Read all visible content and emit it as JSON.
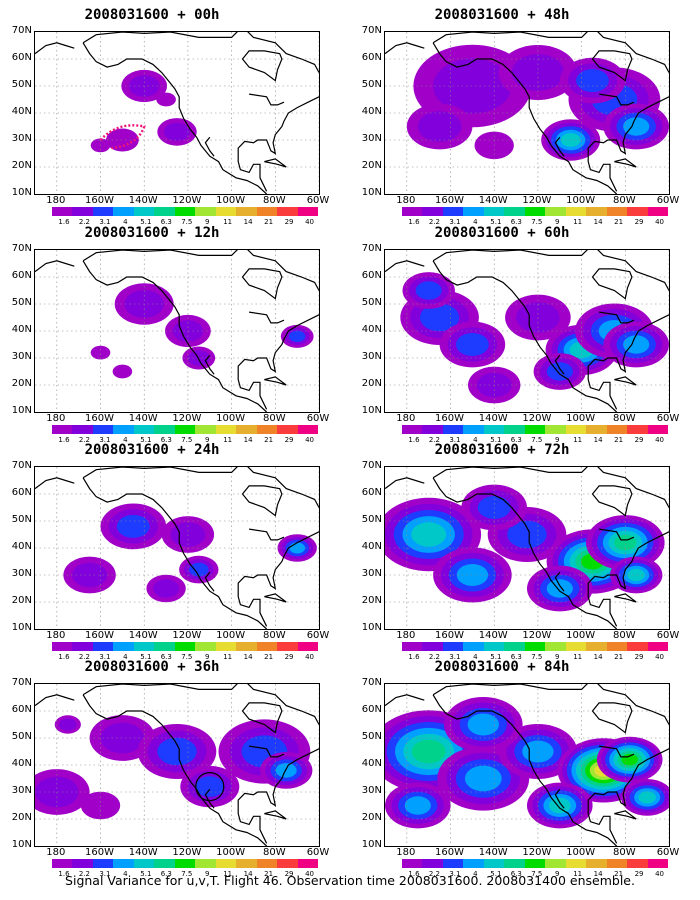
{
  "caption": "Signal Variance for u,v,T. Flight 46. Observation time 2008031600. 2008031400 ensemble.",
  "y_labels": [
    "70N",
    "60N",
    "50N",
    "40N",
    "30N",
    "20N",
    "10N"
  ],
  "x_labels": [
    "180",
    "160W",
    "140W",
    "120W",
    "100W",
    "80W",
    "60W"
  ],
  "colorbar": {
    "colors": [
      "#a000c8",
      "#8200dc",
      "#1e3cff",
      "#00a0ff",
      "#00c8c8",
      "#00d28c",
      "#00dc00",
      "#a0e632",
      "#e6dc32",
      "#e6af2d",
      "#f08228",
      "#fa3c3c",
      "#f00082"
    ],
    "labels": [
      "1.6",
      "2.2",
      "3.1",
      "4",
      "5.1",
      "6.3",
      "7.5",
      "9",
      "11",
      "14",
      "21",
      "29",
      "40"
    ]
  },
  "panels": [
    {
      "title": "2008031600 + 00h",
      "intensity": 0.15
    },
    {
      "title": "2008031600 + 48h",
      "intensity": 0.45
    },
    {
      "title": "2008031600 + 12h",
      "intensity": 0.22
    },
    {
      "title": "2008031600 + 60h",
      "intensity": 0.6
    },
    {
      "title": "2008031600 + 24h",
      "intensity": 0.3
    },
    {
      "title": "2008031600 + 72h",
      "intensity": 0.75
    },
    {
      "title": "2008031600 + 36h",
      "intensity": 0.35
    },
    {
      "title": "2008031600 + 84h",
      "intensity": 0.85
    }
  ]
}
